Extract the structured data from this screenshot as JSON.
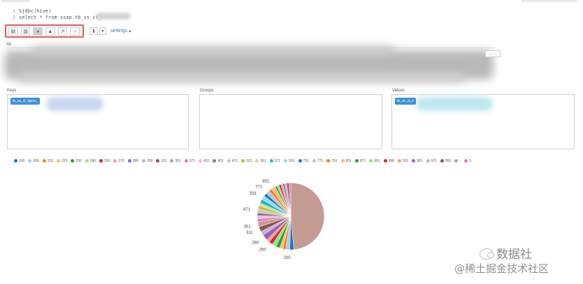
{
  "code": {
    "lines": [
      {
        "num": "1",
        "text": "%jdbc(hive)"
      },
      {
        "num": "2",
        "text": "select * from ssap.tb_ss_ct_"
      }
    ]
  },
  "toolbar": {
    "buttons": [
      {
        "name": "table-view-button",
        "icon": "table-icon",
        "glyph": "▤",
        "active": false
      },
      {
        "name": "bar-chart-button",
        "icon": "bar-chart-icon",
        "glyph": "▥",
        "active": false
      },
      {
        "name": "pie-chart-button",
        "icon": "pie-chart-icon",
        "glyph": "◕",
        "active": true
      },
      {
        "name": "area-chart-button",
        "icon": "area-chart-icon",
        "glyph": "▲",
        "active": false
      },
      {
        "name": "line-chart-button",
        "icon": "line-chart-icon",
        "glyph": "↗",
        "active": false
      },
      {
        "name": "scatter-chart-button",
        "icon": "scatter-chart-icon",
        "glyph": "⁘",
        "active": false
      }
    ],
    "download_icon": "download-icon",
    "download_glyph": "⬇",
    "dropdown_glyph": "▾",
    "settings_label": "settings ▴"
  },
  "fields": {
    "all_label": "All",
    "btn_label": "... ..."
  },
  "panels": {
    "keys": {
      "label": "Keys",
      "chip": "tb_ss_ct_itgrsn_"
    },
    "groups": {
      "label": "Groups"
    },
    "values": {
      "label": "Values",
      "chip": "tb_ss_ct_it"
    }
  },
  "chart_data": {
    "type": "pie",
    "legend": [
      {
        "label": "100",
        "color": "#1f77b4"
      },
      {
        "label": "200",
        "color": "#aec7e8"
      },
      {
        "label": "210",
        "color": "#ff7f0e"
      },
      {
        "label": "220",
        "color": "#ffbb78"
      },
      {
        "label": "230",
        "color": "#2ca02c"
      },
      {
        "label": "240",
        "color": "#98df8a"
      },
      {
        "label": "250",
        "color": "#d62728"
      },
      {
        "label": "270",
        "color": "#ff9896"
      },
      {
        "label": "280",
        "color": "#9467bd"
      },
      {
        "label": "290",
        "color": "#c5b0d5"
      },
      {
        "label": "311",
        "color": "#8c564b"
      },
      {
        "label": "351",
        "color": "#c49c94"
      },
      {
        "label": "371",
        "color": "#e377c2"
      },
      {
        "label": "431",
        "color": "#f7b6d2"
      },
      {
        "label": "451",
        "color": "#7f7f7f"
      },
      {
        "label": "471",
        "color": "#c7c7c7"
      },
      {
        "label": "531",
        "color": "#bcbd22"
      },
      {
        "label": "551",
        "color": "#dbdb8d"
      },
      {
        "label": "571",
        "color": "#17becf"
      },
      {
        "label": "591",
        "color": "#9edae5"
      },
      {
        "label": "731",
        "color": "#1f77b4"
      },
      {
        "label": "771",
        "color": "#aec7e8"
      },
      {
        "label": "791",
        "color": "#ff7f0e"
      },
      {
        "label": "851",
        "color": "#ffbb78"
      },
      {
        "label": "871",
        "color": "#2ca02c"
      },
      {
        "label": "891",
        "color": "#98df8a"
      },
      {
        "label": "898",
        "color": "#d62728"
      },
      {
        "label": "931",
        "color": "#ff9896"
      },
      {
        "label": "951",
        "color": "#9467bd"
      },
      {
        "label": "971",
        "color": "#c5b0d5"
      },
      {
        "label": "991",
        "color": "#8c564b"
      },
      {
        "label": "-",
        "color": "#c49c94"
      },
      {
        "label": "0",
        "color": "#e377c2"
      }
    ],
    "slices": [
      {
        "label": "-",
        "value": 50,
        "color": "#c49c94"
      },
      {
        "label": "100",
        "value": 2,
        "color": "#1f77b4"
      },
      {
        "label": "200",
        "value": 2,
        "color": "#aec7e8"
      },
      {
        "label": "210",
        "value": 1.5,
        "color": "#ff7f0e"
      },
      {
        "label": "220",
        "value": 1.5,
        "color": "#ffbb78"
      },
      {
        "label": "230",
        "value": 2,
        "color": "#2ca02c"
      },
      {
        "label": "240",
        "value": 2,
        "color": "#98df8a"
      },
      {
        "label": "250",
        "value": 2,
        "color": "#d62728"
      },
      {
        "label": "270",
        "value": 1.5,
        "color": "#ff9896"
      },
      {
        "label": "280",
        "value": 3,
        "color": "#9467bd"
      },
      {
        "label": "290",
        "value": 2,
        "color": "#c5b0d5"
      },
      {
        "label": "311",
        "value": 2.5,
        "color": "#8c564b"
      },
      {
        "label": "351",
        "value": 2.5,
        "color": "#c49c94"
      },
      {
        "label": "371",
        "value": 1.5,
        "color": "#e377c2"
      },
      {
        "label": "431",
        "value": 1.5,
        "color": "#f7b6d2"
      },
      {
        "label": "451",
        "value": 1.5,
        "color": "#7f7f7f"
      },
      {
        "label": "471",
        "value": 2,
        "color": "#c7c7c7"
      },
      {
        "label": "531",
        "value": 1.5,
        "color": "#bcbd22"
      },
      {
        "label": "551",
        "value": 1.5,
        "color": "#dbdb8d"
      },
      {
        "label": "571",
        "value": 2,
        "color": "#17becf"
      },
      {
        "label": "591",
        "value": 2,
        "color": "#9edae5"
      },
      {
        "label": "731",
        "value": 1.5,
        "color": "#1f77b4"
      },
      {
        "label": "771",
        "value": 2,
        "color": "#aec7e8"
      },
      {
        "label": "791",
        "value": 1.5,
        "color": "#ff7f0e"
      },
      {
        "label": "851",
        "value": 2,
        "color": "#ffbb78"
      },
      {
        "label": "871",
        "value": 1,
        "color": "#2ca02c"
      },
      {
        "label": "891",
        "value": 1,
        "color": "#98df8a"
      },
      {
        "label": "898",
        "value": 1,
        "color": "#d62728"
      },
      {
        "label": "931",
        "value": 1,
        "color": "#ff9896"
      },
      {
        "label": "951",
        "value": 1,
        "color": "#9467bd"
      },
      {
        "label": "971",
        "value": 1,
        "color": "#c5b0d5"
      },
      {
        "label": "991",
        "value": 1,
        "color": "#8c564b"
      },
      {
        "label": "0",
        "value": 1,
        "color": "#e377c2"
      }
    ],
    "slice_labels": [
      "200",
      "250",
      "280",
      "311",
      "351",
      "471",
      "591",
      "771",
      "851"
    ]
  },
  "watermark": {
    "name": "数据社",
    "sub": "@稀土掘金技术社区"
  }
}
